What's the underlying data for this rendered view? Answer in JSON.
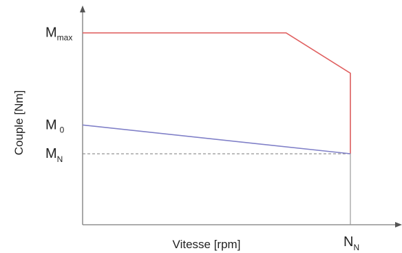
{
  "chart_data": {
    "type": "line",
    "xlabel": "Vitesse [rpm]",
    "ylabel": "Couple [Nm]",
    "grid": false,
    "x_ticks": [
      {
        "main": "N",
        "sub": "N"
      }
    ],
    "y_ticks": [
      {
        "main": "M",
        "sub": "max",
        "value": 1.0
      },
      {
        "main": "M",
        "sub": "0",
        "value": 0.52
      },
      {
        "main": "M",
        "sub": "N",
        "value": 0.37
      }
    ],
    "xlim": [
      0,
      1
    ],
    "ylim": [
      0,
      1.15
    ],
    "series": [
      {
        "color": "#e06060",
        "points": [
          [
            0,
            1.0
          ],
          [
            0.76,
            1.0
          ],
          [
            1.0,
            0.79
          ],
          [
            1.0,
            0.37
          ]
        ]
      },
      {
        "color": "#8080c8",
        "points": [
          [
            0,
            0.52
          ],
          [
            1.0,
            0.37
          ]
        ]
      }
    ],
    "reference_lines": [
      {
        "y": 0.37,
        "style": "dashed",
        "color": "#888888"
      },
      {
        "x": 1.0,
        "style": "solid",
        "color": "#999999"
      }
    ]
  }
}
